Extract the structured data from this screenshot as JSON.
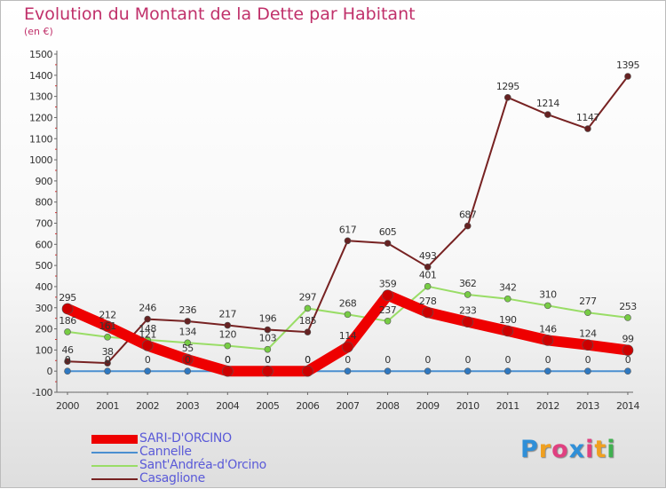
{
  "title": "Evolution du Montant de la Dette par Habitant",
  "subtitle": "(en €)",
  "colors": {
    "title": "#c0306a",
    "legend_text": "#5a5ad8",
    "axis_text": "#333333"
  },
  "logo": {
    "text": "Proxiti",
    "colors": [
      "#2f8fd8",
      "#f0a020",
      "#e04080",
      "#2f8fd8",
      "#e04080",
      "#f0a020",
      "#40b050"
    ]
  },
  "chart_data": {
    "type": "line",
    "x": [
      "2000",
      "2001",
      "2002",
      "2003",
      "2004",
      "2005",
      "2006",
      "2007",
      "2008",
      "2009",
      "2010",
      "2011",
      "2012",
      "2013",
      "2014"
    ],
    "ylim": [
      -100,
      1500
    ],
    "yticks": [
      -100,
      0,
      100,
      200,
      300,
      400,
      500,
      600,
      700,
      800,
      900,
      1000,
      1100,
      1200,
      1300,
      1400,
      1500
    ],
    "grid": false,
    "legend_position": "bottom-left",
    "series": [
      {
        "name": "SARI-D'ORCINO",
        "color": "#ee0000",
        "point_color": "#cc0000",
        "values": [
          295,
          212,
          121,
          55,
          0,
          0,
          0,
          114,
          359,
          278,
          233,
          190,
          146,
          124,
          99
        ],
        "label_values": [
          "295",
          "212",
          "121",
          "55",
          "0",
          "0",
          "0",
          "114",
          "359",
          "278",
          "233",
          "190",
          "146",
          "124",
          "99"
        ]
      },
      {
        "name": "Cannelle",
        "color": "#4a8fd0",
        "point_color": "#2f78c0",
        "values": [
          0,
          0,
          0,
          0,
          0,
          0,
          0,
          0,
          0,
          0,
          0,
          0,
          0,
          0,
          0
        ],
        "label_values": [
          "0",
          "0",
          "0",
          "0",
          "0",
          "0",
          "0",
          "0",
          "0",
          "0",
          "0",
          "0",
          "0",
          "0",
          "0"
        ]
      },
      {
        "name": "Sant'Andréa-d'Orcino",
        "color": "#99dd66",
        "point_color": "#77cc44",
        "values": [
          186,
          161,
          148,
          134,
          120,
          103,
          297,
          268,
          237,
          401,
          362,
          342,
          310,
          277,
          253
        ],
        "label_values": [
          "186",
          "161",
          "148",
          "134",
          "120",
          "103",
          "297",
          "268",
          "237",
          "401",
          "362",
          "342",
          "310",
          "277",
          "253"
        ]
      },
      {
        "name": "Casaglione",
        "color": "#772222",
        "point_color": "#662222",
        "values": [
          46,
          38,
          246,
          236,
          217,
          196,
          185,
          617,
          605,
          493,
          687,
          1295,
          1214,
          1147,
          1395
        ],
        "label_values": [
          "46",
          "38",
          "246",
          "236",
          "217",
          "196",
          "185",
          "617",
          "605",
          "493",
          "687",
          "1295",
          "1214",
          "1147",
          "1395"
        ]
      }
    ]
  }
}
